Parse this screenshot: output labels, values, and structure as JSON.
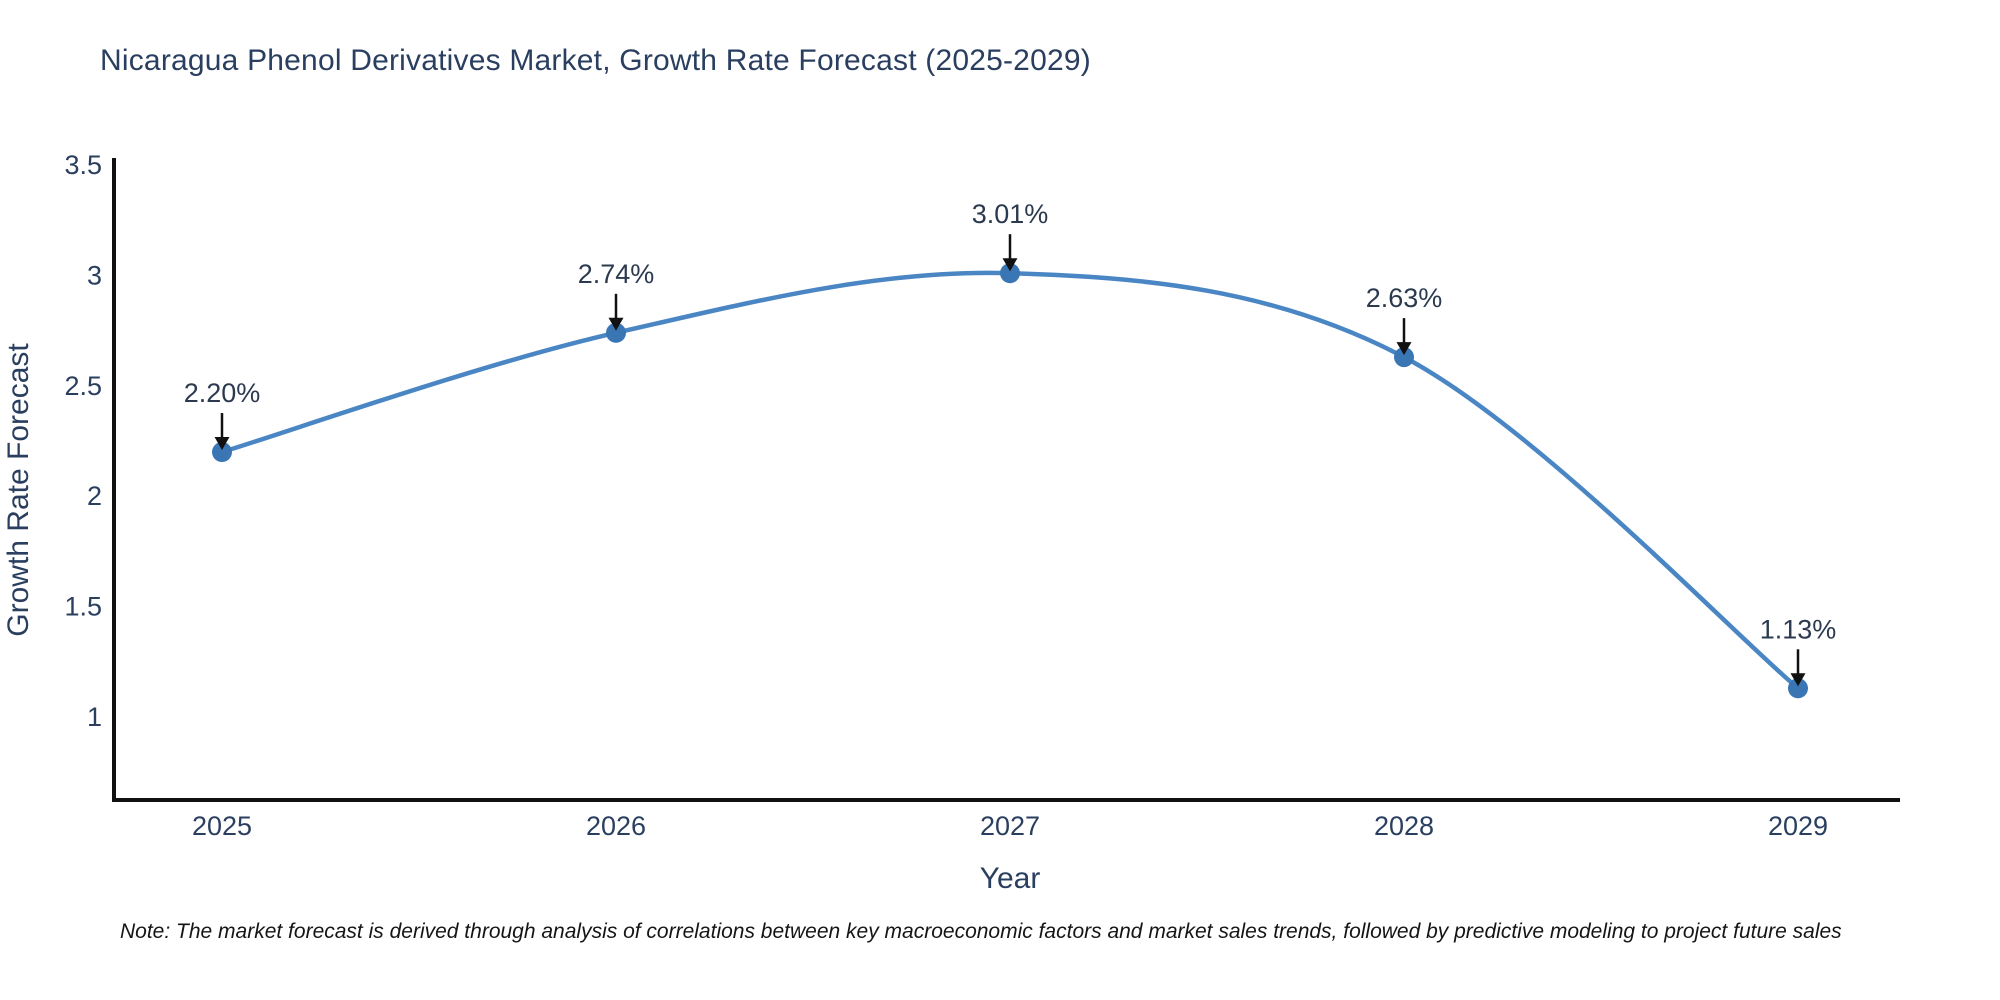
{
  "chart_data": {
    "type": "line",
    "line_shape": "spline",
    "title": "Nicaragua Phenol Derivatives Market, Growth Rate Forecast (2025-2029)",
    "xlabel": "Year",
    "ylabel": "Growth Rate Forecast",
    "x": [
      2025,
      2026,
      2027,
      2028,
      2029
    ],
    "x_ticks": [
      "2025",
      "2026",
      "2027",
      "2028",
      "2029"
    ],
    "values": [
      2.2,
      2.74,
      3.01,
      2.63,
      1.13
    ],
    "point_labels": [
      "2.20%",
      "2.74%",
      "3.01%",
      "2.63%",
      "1.13%"
    ],
    "y_ticks": [
      "3.5",
      "3",
      "2.5",
      "2",
      "1.5",
      "1"
    ],
    "y_tick_values": [
      3.5,
      3.0,
      2.5,
      2.0,
      1.5,
      1.0
    ],
    "ylim": [
      0.6,
      3.52
    ],
    "grid": false,
    "legend": "none",
    "markers": true,
    "annotations_arrows": true,
    "note": "Note: The market forecast is derived through analysis of correlations between key macroeconomic factors and market sales trends, followed by predictive modeling to project future sales",
    "colors": {
      "line": "#4a86c4",
      "marker": "#3a76b4",
      "axis": "#111111",
      "text": "#2a3f5f",
      "annotation_text": "#2c3a50",
      "arrow": "#111111",
      "title": "#2a3f5f",
      "background": "#ffffff"
    }
  }
}
